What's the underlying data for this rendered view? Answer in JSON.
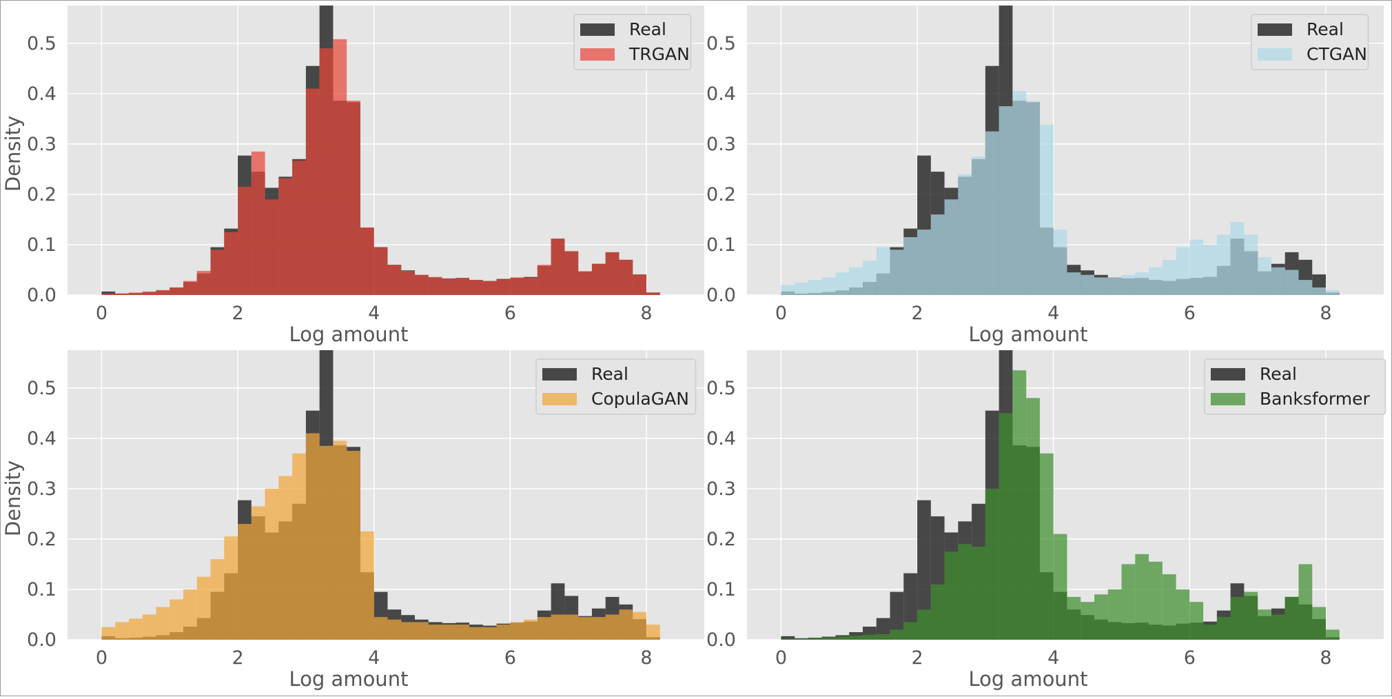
{
  "colors": {
    "background": "#e5e5e5",
    "grid": "#ffffff",
    "real": "#2b2b2b",
    "TRGAN": "#e8483a",
    "CTGAN": "#add8e6",
    "CopulaGAN": "#f0a63a",
    "Banksformer": "#3f8f2e"
  },
  "chart_data": [
    {
      "type": "bar",
      "xlabel": "Log amount",
      "ylabel": "Density",
      "xlim": [
        -0.5,
        8.85
      ],
      "ylim": [
        0,
        0.575
      ],
      "xticks": [
        0,
        2,
        4,
        6,
        8
      ],
      "yticks": [
        0.0,
        0.1,
        0.2,
        0.3,
        0.4,
        0.5
      ],
      "bin_width": 0.2,
      "x_start": 0,
      "grid": true,
      "legend_position": "upper right",
      "series": [
        {
          "name": "Real",
          "color": "#2b2b2b",
          "values": [
            0.007,
            0.003,
            0.004,
            0.006,
            0.009,
            0.015,
            0.026,
            0.043,
            0.095,
            0.132,
            0.277,
            0.245,
            0.213,
            0.235,
            0.27,
            0.455,
            0.575,
            0.386,
            0.383,
            0.134,
            0.095,
            0.06,
            0.049,
            0.04,
            0.035,
            0.033,
            0.034,
            0.03,
            0.028,
            0.032,
            0.034,
            0.036,
            0.058,
            0.112,
            0.087,
            0.047,
            0.062,
            0.085,
            0.07,
            0.041,
            0.005
          ]
        },
        {
          "name": "TRGAN",
          "color": "#e8483a",
          "values": [
            0.003,
            0.003,
            0.005,
            0.007,
            0.01,
            0.015,
            0.028,
            0.048,
            0.09,
            0.125,
            0.215,
            0.285,
            0.19,
            0.232,
            0.267,
            0.41,
            0.49,
            0.508,
            0.386,
            0.134,
            0.094,
            0.06,
            0.048,
            0.04,
            0.036,
            0.033,
            0.034,
            0.03,
            0.028,
            0.031,
            0.035,
            0.035,
            0.06,
            0.112,
            0.087,
            0.047,
            0.062,
            0.085,
            0.07,
            0.041,
            0.005
          ]
        }
      ]
    },
    {
      "type": "bar",
      "xlabel": "Log amount",
      "ylabel": "",
      "xlim": [
        -0.5,
        8.85
      ],
      "ylim": [
        0,
        0.575
      ],
      "xticks": [
        0,
        2,
        4,
        6,
        8
      ],
      "yticks": [
        0.0,
        0.1,
        0.2,
        0.3,
        0.4,
        0.5
      ],
      "bin_width": 0.2,
      "x_start": 0,
      "grid": true,
      "legend_position": "upper right",
      "series": [
        {
          "name": "Real",
          "color": "#2b2b2b",
          "values": [
            0.007,
            0.003,
            0.004,
            0.006,
            0.009,
            0.015,
            0.026,
            0.043,
            0.095,
            0.132,
            0.277,
            0.245,
            0.213,
            0.235,
            0.27,
            0.455,
            0.575,
            0.386,
            0.383,
            0.134,
            0.095,
            0.06,
            0.049,
            0.04,
            0.035,
            0.033,
            0.034,
            0.03,
            0.028,
            0.032,
            0.034,
            0.036,
            0.058,
            0.112,
            0.087,
            0.047,
            0.062,
            0.085,
            0.07,
            0.041,
            0.005
          ]
        },
        {
          "name": "CTGAN",
          "color": "#add8e6",
          "values": [
            0.02,
            0.025,
            0.03,
            0.035,
            0.045,
            0.055,
            0.068,
            0.095,
            0.09,
            0.115,
            0.13,
            0.16,
            0.19,
            0.24,
            0.275,
            0.325,
            0.375,
            0.405,
            0.385,
            0.338,
            0.13,
            0.045,
            0.04,
            0.035,
            0.035,
            0.04,
            0.045,
            0.055,
            0.07,
            0.095,
            0.11,
            0.1,
            0.12,
            0.145,
            0.12,
            0.075,
            0.055,
            0.05,
            0.03,
            0.015,
            0.01
          ]
        }
      ]
    },
    {
      "type": "bar",
      "xlabel": "Log amount",
      "ylabel": "Density",
      "xlim": [
        -0.5,
        8.85
      ],
      "ylim": [
        0,
        0.575
      ],
      "xticks": [
        0,
        2,
        4,
        6,
        8
      ],
      "yticks": [
        0.0,
        0.1,
        0.2,
        0.3,
        0.4,
        0.5
      ],
      "bin_width": 0.2,
      "x_start": 0,
      "grid": true,
      "legend_position": "upper right",
      "series": [
        {
          "name": "Real",
          "color": "#2b2b2b",
          "values": [
            0.007,
            0.003,
            0.004,
            0.006,
            0.009,
            0.015,
            0.026,
            0.043,
            0.095,
            0.132,
            0.277,
            0.245,
            0.213,
            0.235,
            0.27,
            0.455,
            0.575,
            0.386,
            0.383,
            0.134,
            0.095,
            0.06,
            0.049,
            0.04,
            0.035,
            0.033,
            0.034,
            0.03,
            0.028,
            0.032,
            0.034,
            0.036,
            0.058,
            0.112,
            0.087,
            0.047,
            0.062,
            0.085,
            0.07,
            0.041,
            0.005
          ]
        },
        {
          "name": "CopulaGAN",
          "color": "#f0a63a",
          "values": [
            0.025,
            0.035,
            0.042,
            0.05,
            0.065,
            0.08,
            0.1,
            0.125,
            0.16,
            0.205,
            0.23,
            0.265,
            0.3,
            0.325,
            0.37,
            0.41,
            0.385,
            0.395,
            0.375,
            0.215,
            0.045,
            0.04,
            0.035,
            0.035,
            0.03,
            0.03,
            0.03,
            0.025,
            0.025,
            0.03,
            0.035,
            0.04,
            0.045,
            0.05,
            0.05,
            0.045,
            0.045,
            0.05,
            0.06,
            0.055,
            0.03
          ]
        }
      ]
    },
    {
      "type": "bar",
      "xlabel": "Log amount",
      "ylabel": "",
      "xlim": [
        -0.5,
        8.85
      ],
      "ylim": [
        0,
        0.575
      ],
      "xticks": [
        0,
        2,
        4,
        6,
        8
      ],
      "yticks": [
        0.0,
        0.1,
        0.2,
        0.3,
        0.4,
        0.5
      ],
      "bin_width": 0.2,
      "x_start": 0,
      "grid": true,
      "legend_position": "upper right",
      "series": [
        {
          "name": "Real",
          "color": "#2b2b2b",
          "values": [
            0.007,
            0.003,
            0.004,
            0.006,
            0.009,
            0.015,
            0.026,
            0.043,
            0.095,
            0.132,
            0.277,
            0.245,
            0.213,
            0.235,
            0.27,
            0.455,
            0.575,
            0.386,
            0.383,
            0.134,
            0.095,
            0.06,
            0.049,
            0.04,
            0.035,
            0.033,
            0.034,
            0.03,
            0.028,
            0.032,
            0.034,
            0.036,
            0.058,
            0.112,
            0.087,
            0.047,
            0.062,
            0.085,
            0.07,
            0.041,
            0.005
          ]
        },
        {
          "name": "Banksformer",
          "color": "#3f8f2e",
          "values": [
            0.002,
            0.002,
            0.003,
            0.004,
            0.006,
            0.008,
            0.01,
            0.011,
            0.02,
            0.035,
            0.06,
            0.11,
            0.175,
            0.19,
            0.185,
            0.3,
            0.45,
            0.535,
            0.48,
            0.37,
            0.21,
            0.085,
            0.075,
            0.09,
            0.1,
            0.15,
            0.17,
            0.155,
            0.13,
            0.1,
            0.075,
            0.03,
            0.045,
            0.085,
            0.095,
            0.06,
            0.05,
            0.085,
            0.15,
            0.065,
            0.02
          ]
        }
      ]
    }
  ]
}
